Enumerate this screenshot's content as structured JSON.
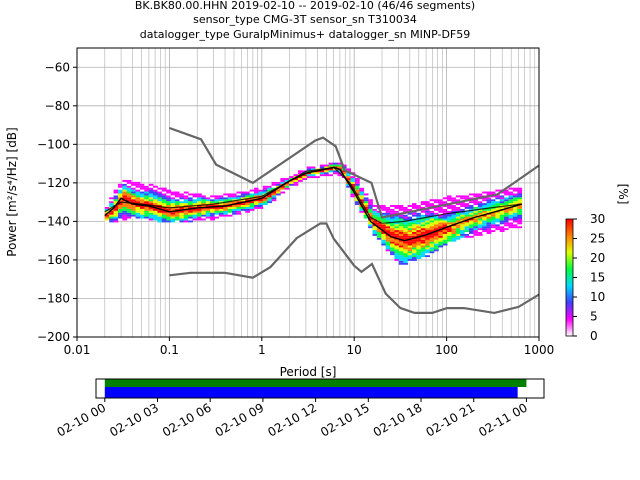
{
  "title_lines": [
    "BK.BK80.00.HHN   2019-02-10 -- 2019-02-10  (46/46 segments)",
    "sensor_type CMG-3T sensor_sn T310034",
    "datalogger_type GuralpMinimus+ datalogger_sn MINP-DF59"
  ],
  "chart_data": [
    {
      "type": "heatmap",
      "xlabel": "Period [s]",
      "ylabel": "Power [m²/s⁴/Hz] [dB]",
      "xscale": "log",
      "xlim": [
        0.01,
        1000
      ],
      "ylim": [
        -200,
        -50
      ],
      "x_ticks": [
        0.01,
        0.1,
        1,
        10,
        100,
        1000
      ],
      "x_tick_labels": [
        "0.01",
        "0.1",
        "1",
        "10",
        "100",
        "1000"
      ],
      "y_ticks": [
        -200,
        -180,
        -160,
        -140,
        -120,
        -100,
        -80,
        -60
      ],
      "y_tick_labels": [
        "−200",
        "−180",
        "−160",
        "−140",
        "−120",
        "−100",
        "−80",
        "−60"
      ],
      "grid": true,
      "colorbar": {
        "label": "[%]",
        "min": 0,
        "max": 30,
        "ticks": [
          "0",
          "5",
          "10",
          "15",
          "20",
          "25",
          "30"
        ],
        "colors": [
          "#ffffff",
          "#ff00ff",
          "#4040ff",
          "#00d8ff",
          "#00ff40",
          "#e0ff00",
          "#ff8000",
          "#ff0000"
        ]
      },
      "noise_models": {
        "color": "#666666",
        "upper": [
          {
            "period": 0.1,
            "db": -91.5
          },
          {
            "period": 0.22,
            "db": -97.4
          },
          {
            "period": 0.32,
            "db": -110.5
          },
          {
            "period": 0.8,
            "db": -120.0
          },
          {
            "period": 3.8,
            "db": -98.0
          },
          {
            "period": 4.6,
            "db": -96.5
          },
          {
            "period": 6.3,
            "db": -101.0
          },
          {
            "period": 7.9,
            "db": -113.5
          },
          {
            "period": 15.4,
            "db": -120.0
          },
          {
            "period": 20.0,
            "db": -138.0
          },
          {
            "period": 354.8,
            "db": -126.0
          },
          {
            "period": 1000,
            "db": -111.0
          }
        ],
        "lower": [
          {
            "period": 0.1,
            "db": -168.0
          },
          {
            "period": 0.17,
            "db": -166.7
          },
          {
            "period": 0.4,
            "db": -166.7
          },
          {
            "period": 0.8,
            "db": -169.2
          },
          {
            "period": 1.24,
            "db": -163.7
          },
          {
            "period": 2.4,
            "db": -148.6
          },
          {
            "period": 4.3,
            "db": -141.1
          },
          {
            "period": 5.0,
            "db": -141.1
          },
          {
            "period": 6.0,
            "db": -149.0
          },
          {
            "period": 10.0,
            "db": -163.0
          },
          {
            "period": 12.0,
            "db": -166.2
          },
          {
            "period": 15.6,
            "db": -162.1
          },
          {
            "period": 21.9,
            "db": -177.5
          },
          {
            "period": 31.6,
            "db": -185.0
          },
          {
            "period": 45.0,
            "db": -187.5
          },
          {
            "period": 70.0,
            "db": -187.5
          },
          {
            "period": 101.0,
            "db": -185.0
          },
          {
            "period": 154.0,
            "db": -185.0
          },
          {
            "period": 328.0,
            "db": -187.5
          },
          {
            "period": 600.0,
            "db": -184.4
          },
          {
            "period": 1000,
            "db": -178.0
          }
        ]
      },
      "mode_curve": {
        "color": "#000000",
        "points": [
          {
            "period": 0.02,
            "db": -137
          },
          {
            "period": 0.025,
            "db": -133
          },
          {
            "period": 0.03,
            "db": -128
          },
          {
            "period": 0.04,
            "db": -131
          },
          {
            "period": 0.06,
            "db": -132
          },
          {
            "period": 0.1,
            "db": -135
          },
          {
            "period": 0.2,
            "db": -133
          },
          {
            "period": 0.4,
            "db": -132
          },
          {
            "period": 1.0,
            "db": -128
          },
          {
            "period": 2.0,
            "db": -119
          },
          {
            "period": 3.0,
            "db": -115
          },
          {
            "period": 6.0,
            "db": -112
          },
          {
            "period": 7.0,
            "db": -113
          },
          {
            "period": 10.0,
            "db": -125
          },
          {
            "period": 15.0,
            "db": -140
          },
          {
            "period": 25.0,
            "db": -148
          },
          {
            "period": 35.0,
            "db": -150
          },
          {
            "period": 60.0,
            "db": -147
          },
          {
            "period": 100.0,
            "db": -143
          },
          {
            "period": 200.0,
            "db": -138
          },
          {
            "period": 400.0,
            "db": -134
          },
          {
            "period": 650.0,
            "db": -131
          }
        ]
      },
      "mean_curve": {
        "color": "#000000",
        "points": [
          {
            "period": 0.02,
            "db": -135
          },
          {
            "period": 0.03,
            "db": -130
          },
          {
            "period": 0.05,
            "db": -131
          },
          {
            "period": 0.1,
            "db": -133
          },
          {
            "period": 0.3,
            "db": -131
          },
          {
            "period": 1.0,
            "db": -127
          },
          {
            "period": 2.0,
            "db": -119
          },
          {
            "period": 3.0,
            "db": -114
          },
          {
            "period": 6.0,
            "db": -112
          },
          {
            "period": 9.0,
            "db": -120
          },
          {
            "period": 15.0,
            "db": -138
          },
          {
            "period": 20.0,
            "db": -141
          },
          {
            "period": 35.0,
            "db": -140
          },
          {
            "period": 100.0,
            "db": -136
          },
          {
            "period": 300.0,
            "db": -133
          },
          {
            "period": 650.0,
            "db": -131
          }
        ]
      },
      "density_band": {
        "period_range": [
          0.02,
          650
        ],
        "upper_db": [
          {
            "period": 0.02,
            "db": -132
          },
          {
            "period": 0.03,
            "db": -119
          },
          {
            "period": 0.06,
            "db": -122
          },
          {
            "period": 0.1,
            "db": -125
          },
          {
            "period": 0.3,
            "db": -128
          },
          {
            "period": 1.0,
            "db": -123
          },
          {
            "period": 2.0,
            "db": -117
          },
          {
            "period": 3.0,
            "db": -113
          },
          {
            "period": 7.0,
            "db": -110
          },
          {
            "period": 10.0,
            "db": -118
          },
          {
            "period": 15.0,
            "db": -132
          },
          {
            "period": 30.0,
            "db": -133
          },
          {
            "period": 100.0,
            "db": -128
          },
          {
            "period": 300.0,
            "db": -125
          },
          {
            "period": 650.0,
            "db": -123
          }
        ],
        "lower_db": [
          {
            "period": 0.02,
            "db": -140
          },
          {
            "period": 0.04,
            "db": -137
          },
          {
            "period": 0.1,
            "db": -140
          },
          {
            "period": 0.3,
            "db": -138
          },
          {
            "period": 1.0,
            "db": -132
          },
          {
            "period": 2.0,
            "db": -121
          },
          {
            "period": 3.0,
            "db": -117
          },
          {
            "period": 7.0,
            "db": -115
          },
          {
            "period": 10.0,
            "db": -130
          },
          {
            "period": 15.0,
            "db": -145
          },
          {
            "period": 30.0,
            "db": -162
          },
          {
            "period": 60.0,
            "db": -157
          },
          {
            "period": 100.0,
            "db": -150
          },
          {
            "period": 300.0,
            "db": -145
          },
          {
            "period": 650.0,
            "db": -142
          }
        ]
      }
    },
    {
      "type": "bar",
      "description_role": "data coverage timeline",
      "x_tick_labels": [
        "02-10 00",
        "02-10 03",
        "02-10 06",
        "02-10 09",
        "02-10 12",
        "02-10 15",
        "02-10 18",
        "02-10 21",
        "02-11 00"
      ],
      "x_range_hours": [
        -0.5,
        25
      ],
      "bars": [
        {
          "color": "#008000",
          "start_hour": 0,
          "end_hour": 24.0
        },
        {
          "color": "#0000ff",
          "start_hour": 0,
          "end_hour": 23.5
        }
      ]
    }
  ]
}
